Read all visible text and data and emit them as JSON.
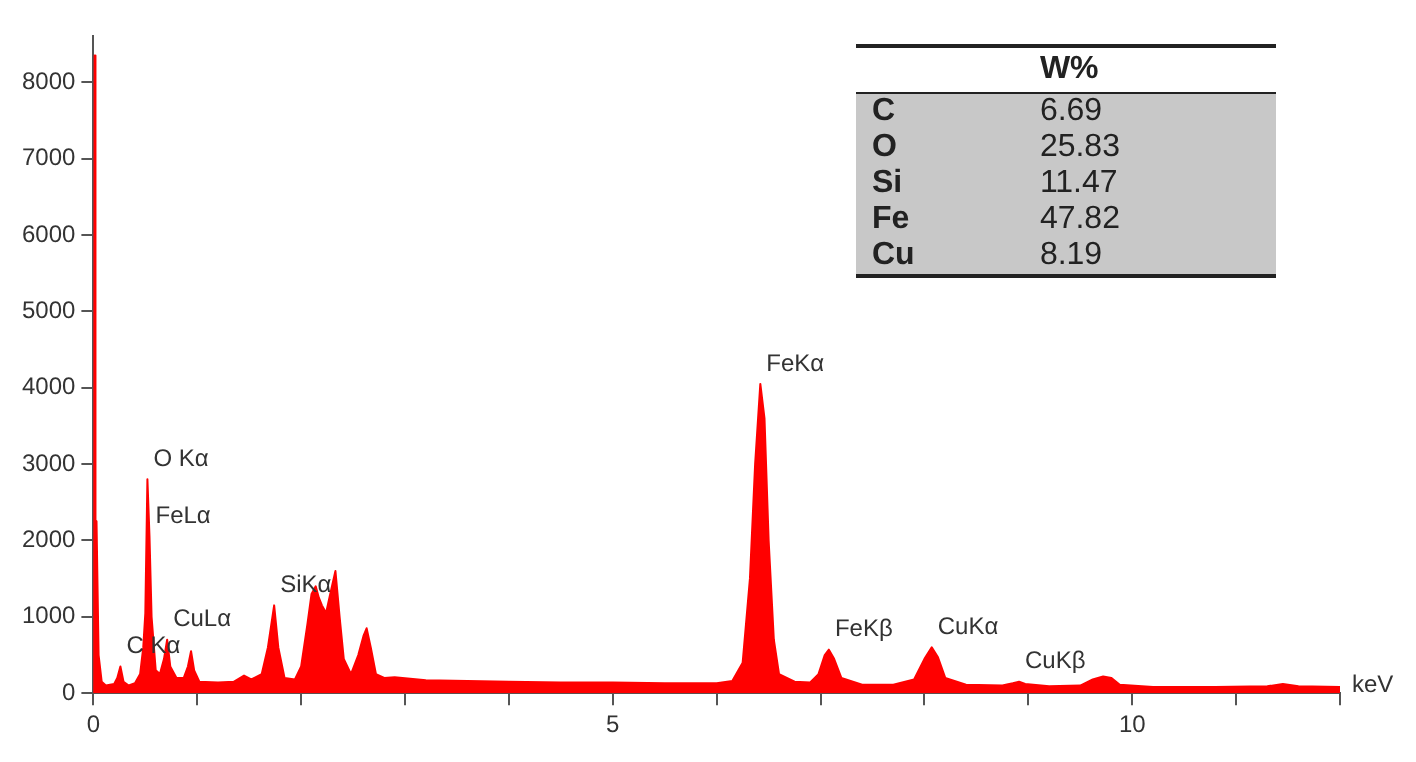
{
  "chart_data": {
    "type": "area",
    "xlabel": "keV",
    "xlim": [
      0,
      12
    ],
    "ylim": [
      0,
      8600
    ],
    "xticks": [
      0,
      {
        "value": 1,
        "label": null
      },
      {
        "value": 2,
        "label": null
      },
      {
        "value": 3,
        "label": null
      },
      {
        "value": 4,
        "label": null
      },
      5,
      {
        "value": 6,
        "label": null
      },
      {
        "value": 7,
        "label": null
      },
      {
        "value": 8,
        "label": null
      },
      {
        "value": 9,
        "label": null
      },
      10,
      {
        "value": 11,
        "label": null
      },
      {
        "value": 12,
        "label": null
      }
    ],
    "yticks": [
      0,
      1000,
      2000,
      3000,
      4000,
      5000,
      6000,
      7000,
      8000
    ],
    "grid": false,
    "legend": false,
    "marker": "none",
    "series": [
      {
        "color": "#ff0000",
        "x": [
          0,
          0.01,
          0.02,
          0.03,
          0.05,
          0.08,
          0.12,
          0.2,
          0.23,
          0.26,
          0.29,
          0.34,
          0.4,
          0.45,
          0.48,
          0.5,
          0.52,
          0.54,
          0.56,
          0.6,
          0.64,
          0.68,
          0.71,
          0.74,
          0.8,
          0.87,
          0.91,
          0.94,
          0.97,
          1.02,
          1.2,
          1.35,
          1.45,
          1.52,
          1.62,
          1.68,
          1.74,
          1.78,
          1.84,
          1.94,
          2.0,
          2.06,
          2.1,
          2.14,
          2.17,
          2.2,
          2.24,
          2.28,
          2.33,
          2.37,
          2.41,
          2.48,
          2.55,
          2.6,
          2.63,
          2.67,
          2.72,
          2.8,
          2.9,
          3.2,
          3.6,
          4.0,
          4.5,
          5.0,
          5.5,
          6.0,
          6.15,
          6.25,
          6.32,
          6.37,
          6.42,
          6.46,
          6.5,
          6.55,
          6.6,
          6.75,
          6.9,
          6.98,
          7.04,
          7.08,
          7.13,
          7.2,
          7.4,
          7.7,
          7.9,
          8.0,
          8.07,
          8.13,
          8.2,
          8.4,
          8.75,
          8.85,
          8.91,
          8.97,
          9.2,
          9.5,
          9.62,
          9.72,
          9.8,
          9.88,
          10.2,
          10.8,
          11.3,
          11.45,
          11.6,
          12.0
        ],
        "values": [
          0,
          8350,
          600,
          2250,
          500,
          150,
          100,
          120,
          200,
          350,
          150,
          100,
          130,
          250,
          600,
          1050,
          2800,
          2050,
          1000,
          300,
          250,
          450,
          700,
          350,
          200,
          200,
          350,
          550,
          300,
          150,
          140,
          150,
          230,
          180,
          250,
          600,
          1150,
          600,
          200,
          180,
          350,
          900,
          1300,
          1400,
          1250,
          1150,
          1050,
          1300,
          1600,
          1000,
          450,
          250,
          500,
          750,
          850,
          600,
          250,
          200,
          210,
          170,
          160,
          150,
          140,
          140,
          130,
          130,
          160,
          400,
          1500,
          3000,
          4050,
          3600,
          2000,
          700,
          250,
          150,
          140,
          250,
          500,
          570,
          450,
          200,
          110,
          110,
          180,
          450,
          600,
          470,
          200,
          110,
          100,
          130,
          150,
          120,
          90,
          100,
          180,
          220,
          200,
          110,
          80,
          80,
          90,
          120,
          90,
          80
        ]
      }
    ],
    "annotations": [
      {
        "text": "C Kα",
        "x": 0.26,
        "y": 350
      },
      {
        "text": "O Kα",
        "x": 0.52,
        "y": 2800
      },
      {
        "text": "FeLα",
        "x": 0.54,
        "y": 2050
      },
      {
        "text": "CuLα",
        "x": 0.71,
        "y": 700
      },
      {
        "text": "SiKα",
        "x": 1.74,
        "y": 1150
      },
      {
        "text": "FeKα",
        "x": 6.42,
        "y": 4050
      },
      {
        "text": "FeKβ",
        "x": 7.08,
        "y": 570
      },
      {
        "text": "CuKα",
        "x": 8.07,
        "y": 600
      },
      {
        "text": "CuKβ",
        "x": 8.91,
        "y": 150
      },
      "W%",
      "C",
      "6.69",
      "O",
      "25.83",
      "Si",
      "11.47",
      "Fe",
      "47.82",
      "Cu",
      "8.19"
    ]
  }
}
